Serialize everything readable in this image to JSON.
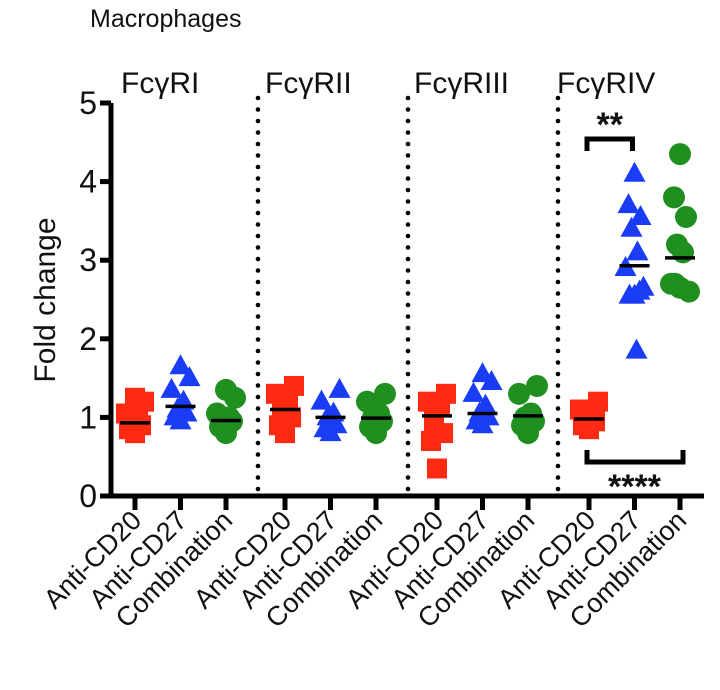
{
  "chart_data": {
    "type": "scatter",
    "title": "Macrophages",
    "ylabel": "Fold change",
    "xlabel": "",
    "ylim": [
      0,
      5
    ],
    "yticks": [
      "0",
      "1",
      "2",
      "3",
      "4",
      "5"
    ],
    "grid": false,
    "groups": [
      {
        "name": "FcγRI",
        "series": [
          {
            "name": "Anti-CD20",
            "mean": 0.93,
            "values": [
              0.8,
              0.85,
              0.9,
              0.95,
              1.0,
              1.05,
              1.2,
              1.25
            ]
          },
          {
            "name": "Anti-CD27",
            "mean": 1.14,
            "values": [
              0.95,
              1.0,
              1.05,
              1.1,
              1.2,
              1.35,
              1.5,
              1.65
            ]
          },
          {
            "name": "Combination",
            "mean": 0.96,
            "values": [
              0.8,
              0.88,
              0.95,
              1.0,
              1.0,
              1.05,
              1.25,
              1.35
            ]
          }
        ]
      },
      {
        "name": "FcγRII",
        "series": [
          {
            "name": "Anti-CD20",
            "mean": 1.1,
            "values": [
              0.8,
              0.9,
              1.0,
              1.1,
              1.2,
              1.3,
              1.4
            ]
          },
          {
            "name": "Anti-CD27",
            "mean": 1.0,
            "values": [
              0.8,
              0.85,
              0.9,
              1.0,
              1.05,
              1.2,
              1.35
            ]
          },
          {
            "name": "Combination",
            "mean": 0.99,
            "values": [
              0.8,
              0.88,
              0.95,
              1.0,
              1.05,
              1.2,
              1.3
            ]
          }
        ]
      },
      {
        "name": "FcγRIII",
        "series": [
          {
            "name": "Anti-CD20",
            "mean": 1.02,
            "values": [
              0.35,
              0.7,
              0.8,
              0.95,
              1.15,
              1.2,
              1.3
            ]
          },
          {
            "name": "Anti-CD27",
            "mean": 1.05,
            "values": [
              0.9,
              0.95,
              1.0,
              1.05,
              1.15,
              1.3,
              1.45,
              1.55
            ]
          },
          {
            "name": "Combination",
            "mean": 1.02,
            "values": [
              0.8,
              0.9,
              0.95,
              1.0,
              1.05,
              1.3,
              1.4
            ]
          }
        ]
      },
      {
        "name": "FcγRIV",
        "series": [
          {
            "name": "Anti-CD20",
            "mean": 0.98,
            "values": [
              0.85,
              0.9,
              0.95,
              1.0,
              1.05,
              1.1,
              1.2
            ]
          },
          {
            "name": "Anti-CD27",
            "mean": 2.93,
            "values": [
              4.1,
              3.7,
              3.55,
              3.4,
              3.1,
              2.9,
              2.65,
              2.55,
              2.55,
              2.6,
              1.85
            ]
          },
          {
            "name": "Combination",
            "mean": 3.03,
            "values": [
              4.35,
              3.8,
              3.55,
              3.2,
              3.1,
              2.7,
              2.6,
              2.65,
              2.7
            ]
          }
        ]
      }
    ],
    "annotations": [
      {
        "text": "**",
        "group": "FcγRIV",
        "from": "Anti-CD20",
        "to": "Anti-CD27",
        "position": "top"
      },
      {
        "text": "****",
        "group": "FcγRIV",
        "from": "Anti-CD20",
        "to": "Combination",
        "position": "bottom"
      }
    ],
    "colors": {
      "Anti-CD20": "#ff2a12",
      "Anti-CD27": "#1a3cf5",
      "Combination": "#1f8f1f"
    },
    "markers": {
      "Anti-CD20": "square",
      "Anti-CD27": "triangle",
      "Combination": "circle"
    }
  }
}
